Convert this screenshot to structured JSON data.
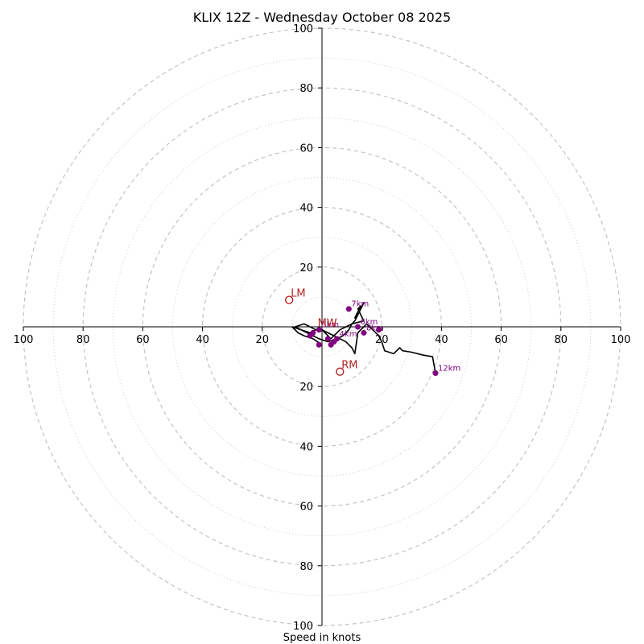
{
  "chart_data": {
    "type": "line",
    "title": "KLIX 12Z - Wednesday October 08 2025",
    "xlabel": "Speed in knots",
    "ylabel": "",
    "xlim": [
      -100,
      100
    ],
    "ylim": [
      -100,
      100
    ],
    "grid": true,
    "rings_major": [
      20,
      40,
      60,
      80,
      100
    ],
    "rings_minor": [
      10,
      30,
      50,
      70,
      90
    ],
    "ticks": [
      {
        "v": -100,
        "label": "100"
      },
      {
        "v": -80,
        "label": "80"
      },
      {
        "v": -60,
        "label": "60"
      },
      {
        "v": -40,
        "label": "40"
      },
      {
        "v": -20,
        "label": "20"
      },
      {
        "v": 20,
        "label": "20"
      },
      {
        "v": 40,
        "label": "40"
      },
      {
        "v": 60,
        "label": "60"
      },
      {
        "v": 80,
        "label": "80"
      },
      {
        "v": 100,
        "label": "100"
      }
    ],
    "series": [
      {
        "name": "hodograph",
        "color": "#000000",
        "x": [
          0,
          -3,
          -6,
          -8,
          -10,
          -7,
          -4,
          -2,
          -6,
          -9,
          -5,
          -3,
          -1,
          2,
          5,
          7,
          8,
          9,
          10,
          11,
          12,
          13,
          14,
          12,
          11,
          13,
          12,
          14,
          10,
          8,
          6,
          5,
          4,
          3,
          2,
          1,
          0,
          2,
          4,
          6,
          8,
          9,
          10,
          11,
          12,
          13,
          14,
          15,
          16,
          17,
          18,
          19,
          20,
          21,
          24,
          26,
          27,
          30,
          34,
          37,
          38
        ],
        "y": [
          -6,
          -4,
          -3,
          -2,
          0,
          -1,
          -2,
          -1,
          1,
          0,
          -2,
          -3,
          -4,
          -5,
          -4,
          -3,
          -2,
          -1,
          1,
          2,
          4,
          6,
          8,
          4,
          3,
          7,
          6,
          2,
          1,
          0,
          -1,
          -2,
          -3,
          -4,
          -3,
          -2,
          -1,
          -2,
          -3,
          -4,
          -5,
          -6,
          -7,
          -9,
          -2,
          -1,
          0,
          1,
          0,
          -1,
          -2,
          -3,
          -5,
          -8,
          -9,
          -7,
          -8,
          -8.5,
          -9.5,
          -10,
          -15.5
        ]
      }
    ],
    "height_markers": [
      {
        "label": "",
        "u": -1,
        "v": -6
      },
      {
        "label": "",
        "u": -4,
        "v": -3
      },
      {
        "label": "",
        "u": -3,
        "v": -2
      },
      {
        "label": "3km",
        "u": -1,
        "v": -1
      },
      {
        "label": "",
        "u": 3,
        "v": -6
      },
      {
        "label": "",
        "u": 4,
        "v": -5
      },
      {
        "label": "",
        "u": 2,
        "v": -4
      },
      {
        "label": "4km",
        "u": 5,
        "v": -4
      },
      {
        "label": "6km",
        "u": 12,
        "v": 0
      },
      {
        "label": "7km",
        "u": 9,
        "v": 6
      },
      {
        "label": "8km",
        "u": 14,
        "v": -2
      },
      {
        "label": "",
        "u": 19,
        "v": -1
      },
      {
        "label": "12km",
        "u": 38,
        "v": -15.5
      }
    ],
    "storm_motion": [
      {
        "label": "LM",
        "u": -11,
        "v": 9
      },
      {
        "label": "RM",
        "u": 6,
        "v": -15
      },
      {
        "label": "MW",
        "u": -2,
        "v": -1
      }
    ],
    "colors": {
      "line": "#000000",
      "markers": "#800080",
      "storm": "#b22222",
      "grid": "#bfbfbf",
      "axis": "#000000"
    }
  }
}
